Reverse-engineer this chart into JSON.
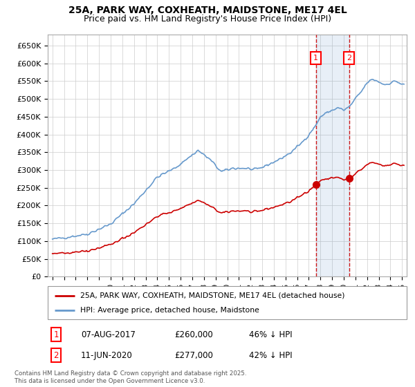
{
  "title_line1": "25A, PARK WAY, COXHEATH, MAIDSTONE, ME17 4EL",
  "title_line2": "Price paid vs. HM Land Registry's House Price Index (HPI)",
  "ylabel_ticks": [
    "£0",
    "£50K",
    "£100K",
    "£150K",
    "£200K",
    "£250K",
    "£300K",
    "£350K",
    "£400K",
    "£450K",
    "£500K",
    "£550K",
    "£600K",
    "£650K"
  ],
  "ylim": [
    0,
    680000
  ],
  "hpi_color": "#6699cc",
  "price_color": "#cc0000",
  "sale1_date": "07-AUG-2017",
  "sale1_price": 260000,
  "sale1_pct": "46% ↓ HPI",
  "sale1_year": 2017.6,
  "sale2_date": "11-JUN-2020",
  "sale2_price": 277000,
  "sale2_pct": "42% ↓ HPI",
  "sale2_year": 2020.45,
  "legend_label_price": "25A, PARK WAY, COXHEATH, MAIDSTONE, ME17 4EL (detached house)",
  "legend_label_hpi": "HPI: Average price, detached house, Maidstone",
  "footnote": "Contains HM Land Registry data © Crown copyright and database right 2025.\nThis data is licensed under the Open Government Licence v3.0.",
  "background_color": "#ffffff",
  "grid_color": "#cccccc",
  "shade_color": "#ddeeff",
  "fig_width": 6.0,
  "fig_height": 5.6,
  "dpi": 100
}
